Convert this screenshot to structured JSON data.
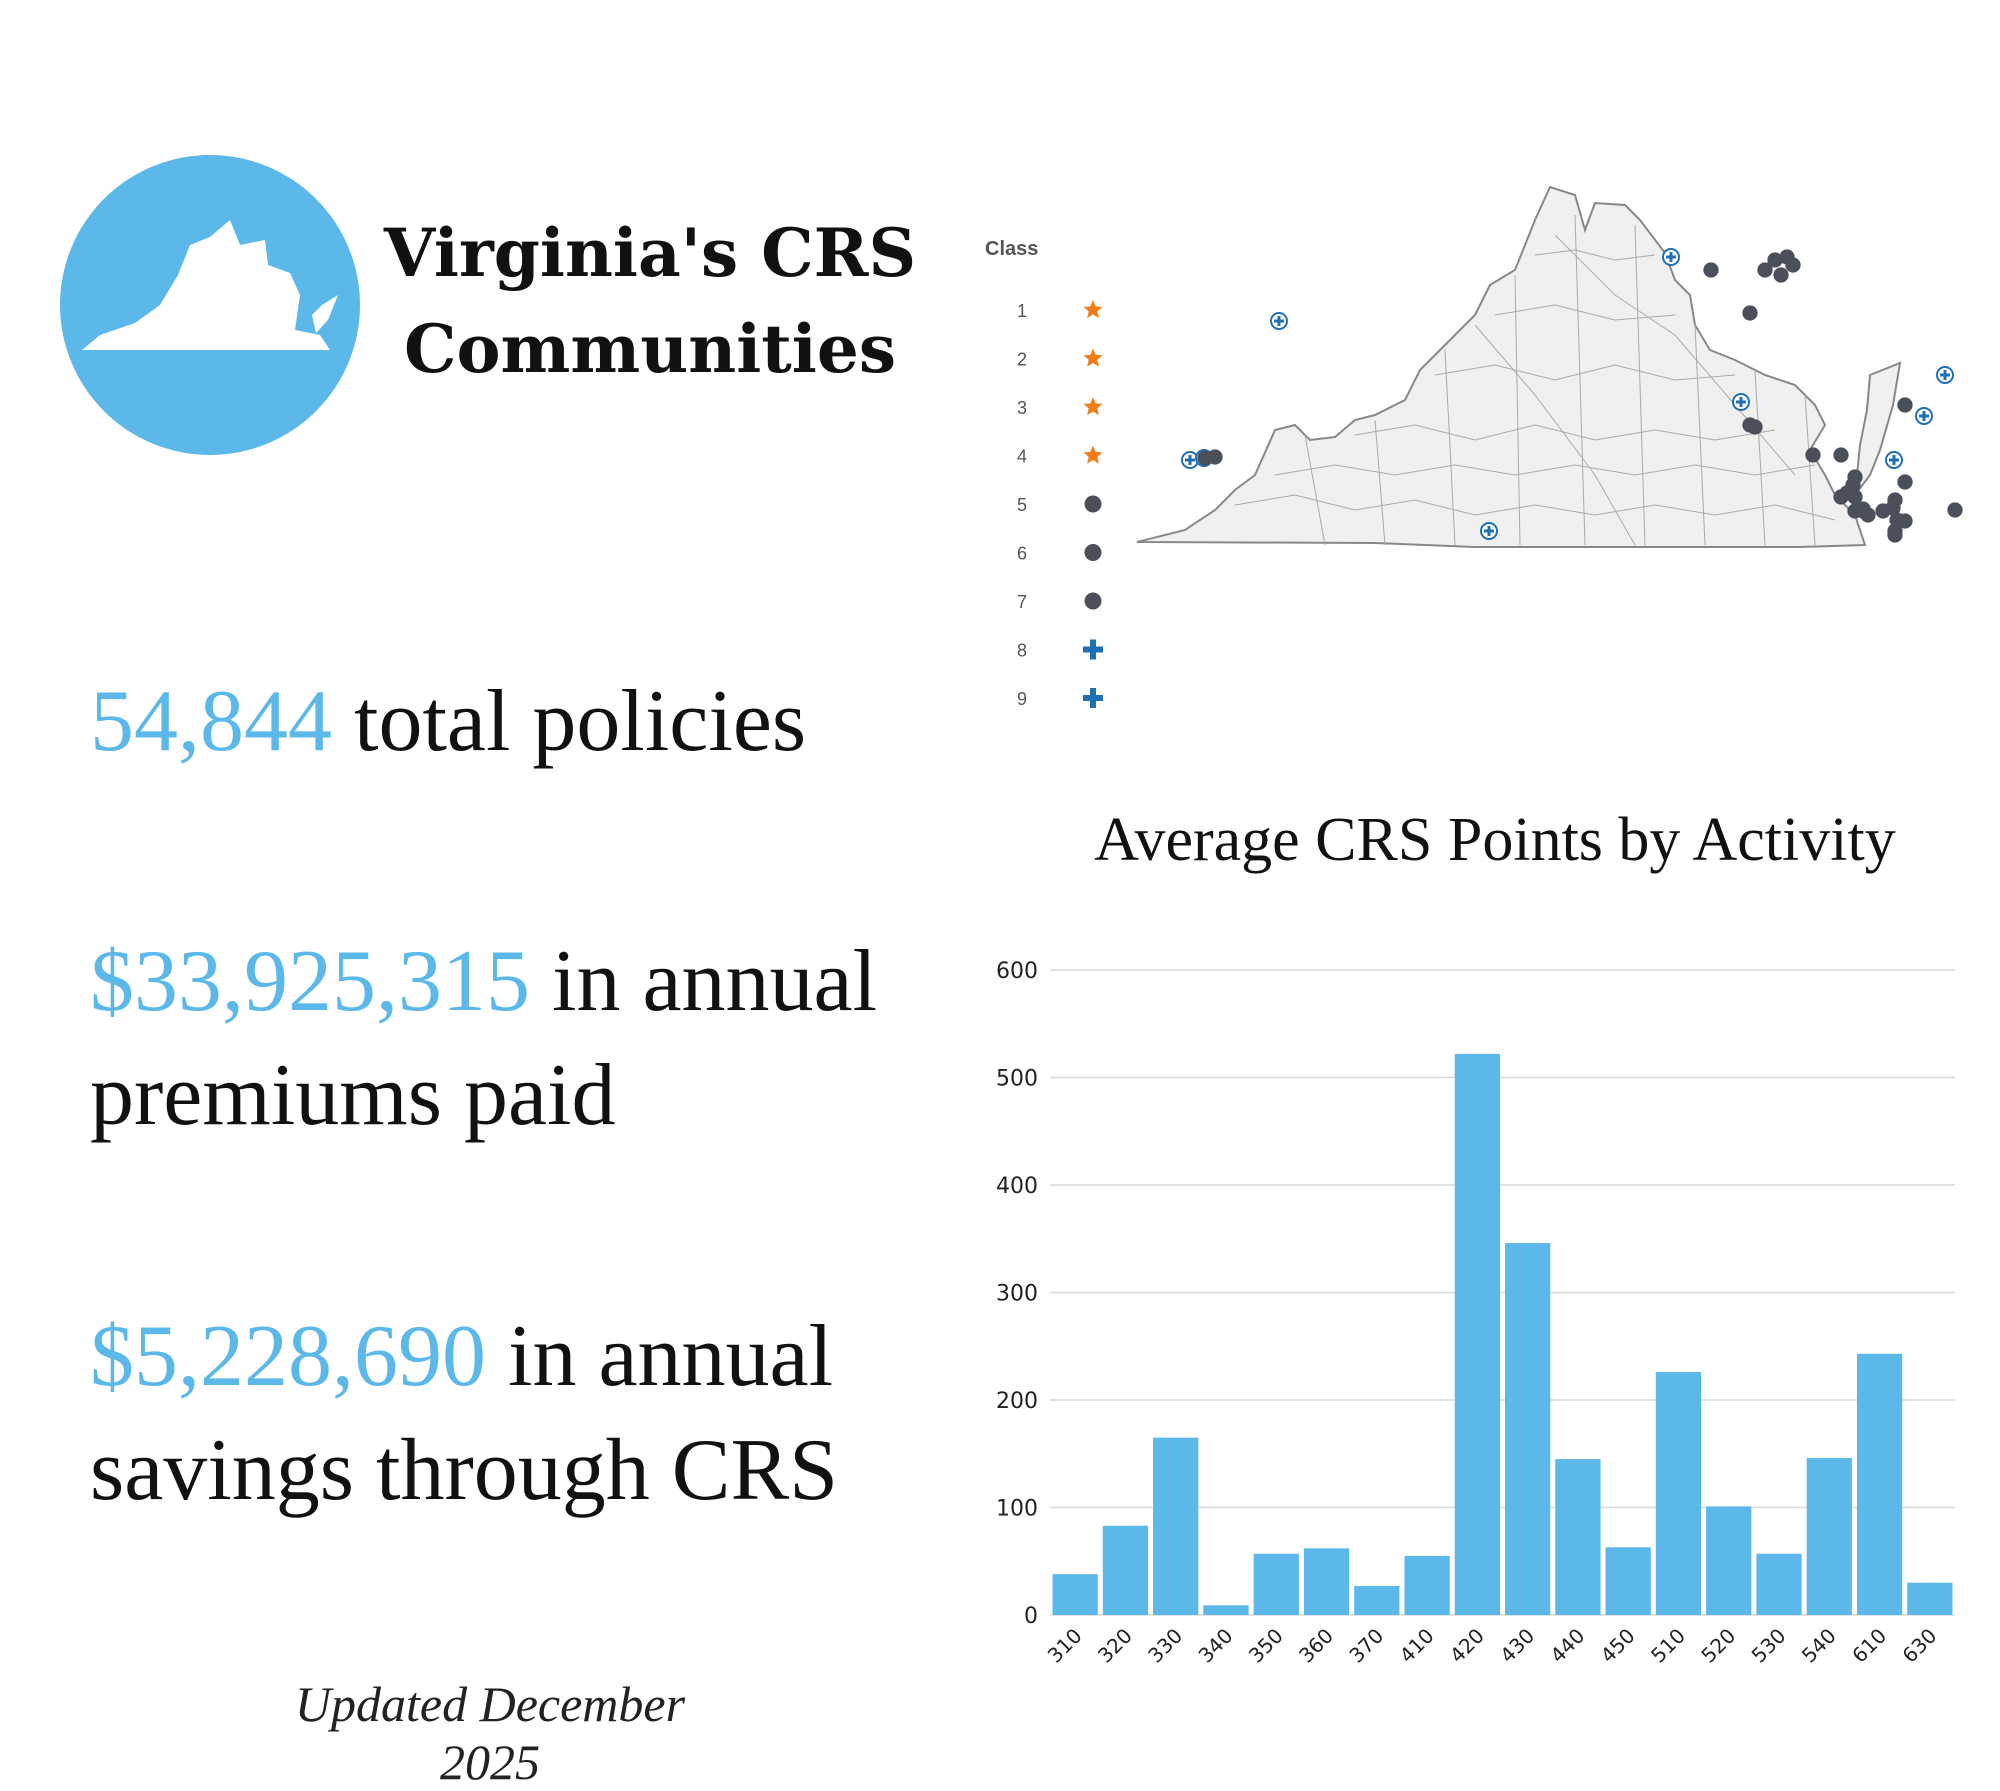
{
  "header": {
    "title_line1": "Virginia's CRS",
    "title_line2": "Communities"
  },
  "stats": [
    {
      "value": "54,844",
      "line1": " total policies",
      "line2": ""
    },
    {
      "value": "$33,925,315",
      "line1": " in annual",
      "line2": "premiums paid"
    },
    {
      "value": "$5,228,690",
      "line1": " in annual",
      "line2": "savings through CRS"
    }
  ],
  "footer": {
    "updated": "Updated December 2025"
  },
  "colors": {
    "accent": "#5cb8e8",
    "bar": "#5cb8e8",
    "star": "#f07d1a",
    "dot": "#4a4f5a",
    "plus": "#1f6fb4"
  },
  "map": {
    "legend_title": "Class",
    "legend": [
      {
        "label": "1",
        "icon": "star-icon"
      },
      {
        "label": "2",
        "icon": "star-icon"
      },
      {
        "label": "3",
        "icon": "star-icon"
      },
      {
        "label": "4",
        "icon": "star-icon"
      },
      {
        "label": "5",
        "icon": "dot-icon"
      },
      {
        "label": "6",
        "icon": "dot-icon"
      },
      {
        "label": "7",
        "icon": "dot-icon"
      },
      {
        "label": "8",
        "icon": "plus-icon"
      },
      {
        "label": "9",
        "icon": "plus-icon"
      }
    ]
  },
  "chart_data": {
    "type": "bar",
    "title": "Average CRS Points by Activity",
    "xlabel": "",
    "ylabel": "",
    "categories": [
      "310",
      "320",
      "330",
      "340",
      "350",
      "360",
      "370",
      "410",
      "420",
      "430",
      "440",
      "450",
      "510",
      "520",
      "530",
      "540",
      "610",
      "630"
    ],
    "values": [
      38,
      83,
      165,
      9,
      57,
      62,
      27,
      55,
      522,
      346,
      145,
      63,
      226,
      101,
      57,
      146,
      243,
      30
    ],
    "ylim": [
      0,
      600
    ],
    "yticks": [
      0,
      100,
      200,
      300,
      400,
      500,
      600
    ],
    "grid": true
  }
}
